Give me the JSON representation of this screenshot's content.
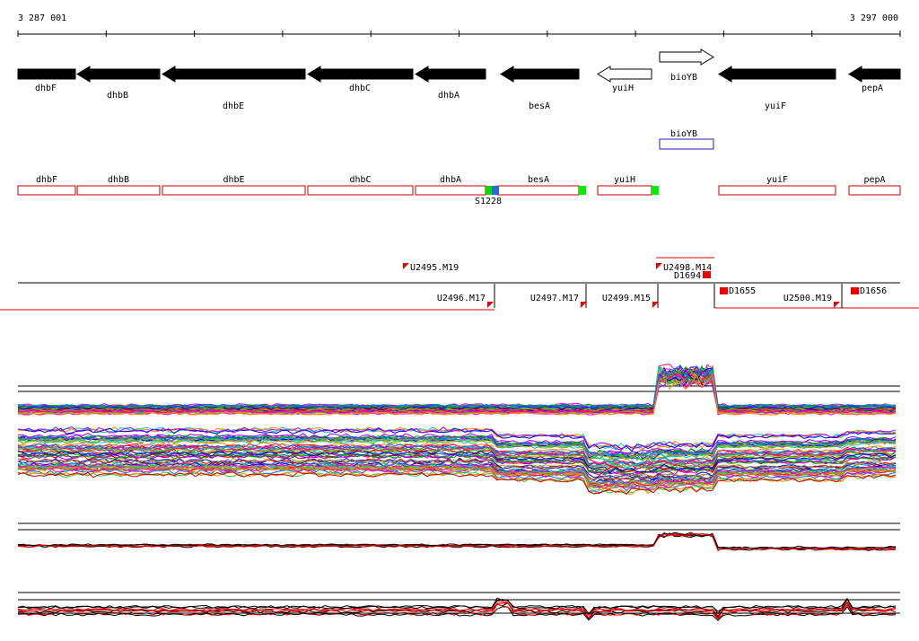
{
  "ruler": {
    "start": "3 287 001",
    "end": "3 297 000"
  },
  "genes": [
    {
      "label": "dhbF"
    },
    {
      "label": "dhbB"
    },
    {
      "label": "dhbE"
    },
    {
      "label": "dhbC"
    },
    {
      "label": "dhbA"
    },
    {
      "label": "besA"
    },
    {
      "label": "yuiH"
    },
    {
      "label": "bioYB"
    },
    {
      "label": "yuiF"
    },
    {
      "label": "pepA"
    }
  ],
  "predicted_box": {
    "label": "bioYB"
  },
  "boxes": [
    {
      "label": "dhbF"
    },
    {
      "label": "dhbB"
    },
    {
      "label": "dhbE"
    },
    {
      "label": "dhbC"
    },
    {
      "label": "dhbA"
    },
    {
      "label": "besA"
    },
    {
      "label": "yuiH"
    },
    {
      "label": "yuiF"
    },
    {
      "label": "pepA"
    }
  ],
  "site": {
    "label": "S1228"
  },
  "units": [
    {
      "label": "U2495.M19"
    },
    {
      "label": "U2498.M14"
    },
    {
      "label": "D1694"
    },
    {
      "label": "U2496.M17"
    },
    {
      "label": "U2497.M17"
    },
    {
      "label": "U2499.M15"
    },
    {
      "label": "D1655"
    },
    {
      "label": "U2500.M19"
    },
    {
      "label": "D1656"
    }
  ]
}
